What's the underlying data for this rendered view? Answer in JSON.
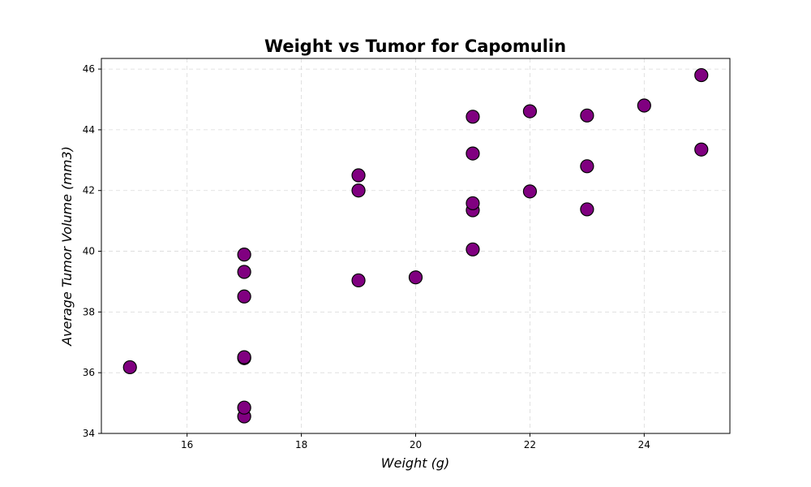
{
  "chart_data": {
    "type": "scatter",
    "title": "Weight vs Tumor for Capomulin",
    "xlabel": "Weight (g)",
    "ylabel": "Average Tumor Volume (mm3)",
    "xlim": [
      14.5,
      25.5
    ],
    "ylim": [
      34,
      46.35
    ],
    "xticks": [
      16,
      18,
      20,
      22,
      24
    ],
    "yticks": [
      34,
      36,
      38,
      40,
      42,
      44,
      46
    ],
    "grid": true,
    "legend": "none",
    "marker_color": "#800080",
    "marker_edge_color": "#000000",
    "grid_color": "#d9d9d9",
    "points": [
      {
        "x": 15,
        "y": 36.18
      },
      {
        "x": 17,
        "y": 34.56
      },
      {
        "x": 17,
        "y": 34.85
      },
      {
        "x": 17,
        "y": 36.48
      },
      {
        "x": 17,
        "y": 36.51
      },
      {
        "x": 17,
        "y": 38.51
      },
      {
        "x": 17,
        "y": 39.32
      },
      {
        "x": 17,
        "y": 39.89
      },
      {
        "x": 19,
        "y": 39.04
      },
      {
        "x": 19,
        "y": 42.0
      },
      {
        "x": 19,
        "y": 42.5
      },
      {
        "x": 20,
        "y": 39.14
      },
      {
        "x": 21,
        "y": 40.06
      },
      {
        "x": 21,
        "y": 41.35
      },
      {
        "x": 21,
        "y": 41.58
      },
      {
        "x": 21,
        "y": 43.22
      },
      {
        "x": 21,
        "y": 44.43
      },
      {
        "x": 22,
        "y": 41.97
      },
      {
        "x": 22,
        "y": 44.61
      },
      {
        "x": 23,
        "y": 41.38
      },
      {
        "x": 23,
        "y": 42.8
      },
      {
        "x": 23,
        "y": 44.47
      },
      {
        "x": 24,
        "y": 44.8
      },
      {
        "x": 25,
        "y": 43.35
      },
      {
        "x": 25,
        "y": 45.8
      }
    ]
  }
}
